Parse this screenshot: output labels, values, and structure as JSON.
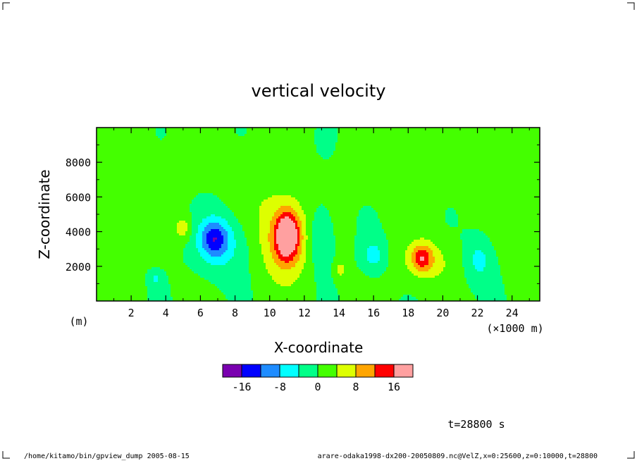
{
  "chart_data": {
    "type": "heatmap",
    "title": "vertical velocity",
    "xlabel": "X-coordinate",
    "ylabel": "Z-coordinate",
    "x_unit_label": "(×1000 m)",
    "y_unit_label": "(m)",
    "xlim": [
      0,
      25.6
    ],
    "ylim": [
      0,
      10000
    ],
    "x_ticks": [
      "2",
      "4",
      "6",
      "8",
      "10",
      "12",
      "14",
      "16",
      "18",
      "20",
      "22",
      "24"
    ],
    "x_tick_values": [
      2,
      4,
      6,
      8,
      10,
      12,
      14,
      16,
      18,
      20,
      22,
      24
    ],
    "y_ticks": [
      "2000",
      "4000",
      "6000",
      "8000"
    ],
    "y_tick_values": [
      2000,
      4000,
      6000,
      8000
    ],
    "colorbar": {
      "levels": [
        -20,
        -16,
        -12,
        -8,
        -4,
        0,
        4,
        8,
        12,
        16,
        20
      ],
      "colors": [
        "#7a00b0",
        "#0000ff",
        "#1e8cff",
        "#00ffff",
        "#00ff88",
        "#44ff00",
        "#ddff00",
        "#ffa500",
        "#ff0000",
        "#ffa0a0"
      ],
      "tick_labels": [
        "-16",
        "-8",
        "0",
        "8",
        "16"
      ],
      "tick_values": [
        -16,
        -8,
        0,
        8,
        16
      ]
    },
    "field_features": [
      {
        "x": 11.0,
        "z": 3800,
        "value": 18,
        "sx": 0.45,
        "sz": 900
      },
      {
        "x": 10.9,
        "z": 3500,
        "value": 10,
        "sx": 1.0,
        "sz": 1600
      },
      {
        "x": 6.8,
        "z": 3600,
        "value": -11,
        "sx": 0.55,
        "sz": 700
      },
      {
        "x": 7.2,
        "z": 3300,
        "value": -6,
        "sx": 1.1,
        "sz": 1300
      },
      {
        "x": 5.0,
        "z": 4200,
        "value": 6,
        "sx": 0.35,
        "sz": 500
      },
      {
        "x": 12.9,
        "z": 3600,
        "value": -6,
        "sx": 0.5,
        "sz": 1300
      },
      {
        "x": 14.1,
        "z": 1800,
        "value": 5,
        "sx": 0.25,
        "sz": 400
      },
      {
        "x": 16.0,
        "z": 2600,
        "value": -6,
        "sx": 0.5,
        "sz": 700
      },
      {
        "x": 18.8,
        "z": 2500,
        "value": 10,
        "sx": 0.4,
        "sz": 500
      },
      {
        "x": 19.0,
        "z": 2300,
        "value": 6,
        "sx": 1.0,
        "sz": 900
      },
      {
        "x": 22.1,
        "z": 2400,
        "value": -6,
        "sx": 0.55,
        "sz": 1000
      },
      {
        "x": 3.4,
        "z": 1300,
        "value": -5,
        "sx": 0.25,
        "sz": 300
      },
      {
        "x": 9.3,
        "z": 6500,
        "value": 2,
        "sx": 1.2,
        "sz": 1800
      },
      {
        "x": 17.0,
        "z": 8000,
        "value": 1.5,
        "sx": 1.5,
        "sz": 1500
      },
      {
        "x": 2.0,
        "z": 6800,
        "value": 1.2,
        "sx": 2.0,
        "sz": 2000
      },
      {
        "x": 23.5,
        "z": 7000,
        "value": 1.3,
        "sx": 1.8,
        "sz": 2500
      }
    ]
  },
  "annotations": {
    "time_label": "t=28800 s",
    "footer_left": "/home/kitamo/bin/gpview_dump  2005-08-15",
    "footer_right": "arare-odaka1998-dx200-20050809.nc@VelZ,x=0:25600,z=0:10000,t=28800"
  }
}
